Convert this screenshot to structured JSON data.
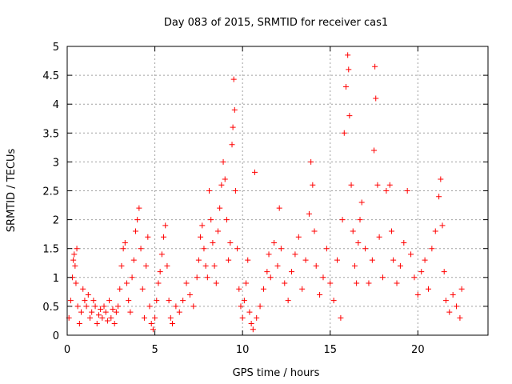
{
  "chart_data": {
    "type": "scatter",
    "title": "Day 083 of 2015, SRMTID for receiver cas1",
    "xlabel": "GPS time / hours",
    "ylabel": "SRMTID / TECUs",
    "xlim": [
      0,
      24
    ],
    "ylim": [
      0,
      5
    ],
    "x_ticks": [
      0,
      5,
      10,
      15,
      20
    ],
    "x_tick_labels": [
      "0",
      "5",
      "10",
      "15",
      "20"
    ],
    "y_ticks": [
      0,
      0.5,
      1,
      1.5,
      2,
      2.5,
      3,
      3.5,
      4,
      4.5,
      5
    ],
    "y_tick_labels": [
      "0",
      "0.5",
      "1",
      "1.5",
      "2",
      "2.5",
      "3",
      "3.5",
      "4",
      "4.5",
      "5"
    ],
    "grid": true,
    "marker": "plus",
    "marker_color": "#ff0000",
    "series": [
      {
        "name": "SRMTID",
        "points": [
          [
            0.1,
            0.3
          ],
          [
            0.2,
            0.6
          ],
          [
            0.3,
            1.0
          ],
          [
            0.35,
            1.3
          ],
          [
            0.4,
            1.4
          ],
          [
            0.45,
            1.2
          ],
          [
            0.5,
            0.9
          ],
          [
            0.55,
            1.5
          ],
          [
            0.6,
            0.5
          ],
          [
            0.7,
            0.2
          ],
          [
            0.8,
            0.4
          ],
          [
            0.9,
            0.8
          ],
          [
            1.0,
            0.6
          ],
          [
            1.1,
            0.5
          ],
          [
            1.2,
            0.7
          ],
          [
            1.3,
            0.3
          ],
          [
            1.4,
            0.4
          ],
          [
            1.5,
            0.6
          ],
          [
            1.6,
            0.5
          ],
          [
            1.7,
            0.2
          ],
          [
            1.8,
            0.35
          ],
          [
            1.9,
            0.45
          ],
          [
            2.0,
            0.3
          ],
          [
            2.1,
            0.5
          ],
          [
            2.2,
            0.4
          ],
          [
            2.3,
            0.25
          ],
          [
            2.4,
            0.6
          ],
          [
            2.5,
            0.3
          ],
          [
            2.6,
            0.45
          ],
          [
            2.7,
            0.2
          ],
          [
            2.8,
            0.4
          ],
          [
            2.9,
            0.5
          ],
          [
            3.0,
            0.8
          ],
          [
            3.1,
            1.2
          ],
          [
            3.2,
            1.5
          ],
          [
            3.3,
            1.6
          ],
          [
            3.4,
            0.9
          ],
          [
            3.5,
            0.6
          ],
          [
            3.6,
            0.4
          ],
          [
            3.7,
            1.0
          ],
          [
            3.8,
            1.3
          ],
          [
            3.9,
            1.8
          ],
          [
            4.0,
            2.0
          ],
          [
            4.1,
            2.2
          ],
          [
            4.2,
            1.5
          ],
          [
            4.3,
            0.8
          ],
          [
            4.4,
            0.3
          ],
          [
            4.5,
            1.2
          ],
          [
            4.6,
            1.7
          ],
          [
            4.7,
            0.5
          ],
          [
            4.8,
            0.2
          ],
          [
            4.9,
            0.1
          ],
          [
            5.0,
            0.3
          ],
          [
            5.1,
            0.6
          ],
          [
            5.2,
            0.9
          ],
          [
            5.3,
            1.1
          ],
          [
            5.4,
            1.4
          ],
          [
            5.5,
            1.7
          ],
          [
            5.6,
            1.9
          ],
          [
            5.7,
            1.2
          ],
          [
            5.8,
            0.6
          ],
          [
            5.9,
            0.3
          ],
          [
            6.0,
            0.2
          ],
          [
            6.2,
            0.5
          ],
          [
            6.4,
            0.4
          ],
          [
            6.6,
            0.6
          ],
          [
            6.8,
            0.9
          ],
          [
            7.0,
            0.7
          ],
          [
            7.2,
            0.5
          ],
          [
            7.4,
            1.0
          ],
          [
            7.5,
            1.3
          ],
          [
            7.6,
            1.7
          ],
          [
            7.7,
            1.9
          ],
          [
            7.8,
            1.5
          ],
          [
            7.9,
            1.2
          ],
          [
            8.0,
            1.0
          ],
          [
            8.1,
            2.5
          ],
          [
            8.2,
            2.0
          ],
          [
            8.3,
            1.6
          ],
          [
            8.4,
            1.2
          ],
          [
            8.5,
            0.9
          ],
          [
            8.6,
            1.8
          ],
          [
            8.7,
            2.2
          ],
          [
            8.8,
            2.6
          ],
          [
            8.9,
            3.0
          ],
          [
            9.0,
            2.7
          ],
          [
            9.1,
            2.0
          ],
          [
            9.2,
            1.3
          ],
          [
            9.3,
            1.6
          ],
          [
            9.4,
            3.3
          ],
          [
            9.45,
            3.6
          ],
          [
            9.5,
            4.43
          ],
          [
            9.55,
            3.9
          ],
          [
            9.6,
            2.5
          ],
          [
            9.7,
            1.5
          ],
          [
            9.8,
            0.8
          ],
          [
            9.9,
            0.5
          ],
          [
            10.0,
            0.3
          ],
          [
            10.1,
            0.6
          ],
          [
            10.2,
            0.9
          ],
          [
            10.3,
            1.3
          ],
          [
            10.4,
            0.4
          ],
          [
            10.5,
            0.2
          ],
          [
            10.6,
            0.1
          ],
          [
            10.7,
            2.82
          ],
          [
            10.8,
            0.3
          ],
          [
            11.0,
            0.5
          ],
          [
            11.2,
            0.8
          ],
          [
            11.4,
            1.1
          ],
          [
            11.5,
            1.4
          ],
          [
            11.6,
            1.0
          ],
          [
            11.8,
            1.6
          ],
          [
            12.0,
            1.2
          ],
          [
            12.1,
            2.2
          ],
          [
            12.2,
            1.5
          ],
          [
            12.4,
            0.9
          ],
          [
            12.6,
            0.6
          ],
          [
            12.8,
            1.1
          ],
          [
            13.0,
            1.4
          ],
          [
            13.2,
            1.7
          ],
          [
            13.4,
            0.8
          ],
          [
            13.6,
            1.3
          ],
          [
            13.8,
            2.1
          ],
          [
            13.9,
            3.0
          ],
          [
            14.0,
            2.6
          ],
          [
            14.1,
            1.8
          ],
          [
            14.2,
            1.2
          ],
          [
            14.4,
            0.7
          ],
          [
            14.6,
            1.0
          ],
          [
            14.8,
            1.5
          ],
          [
            15.0,
            0.9
          ],
          [
            15.2,
            0.6
          ],
          [
            15.4,
            1.3
          ],
          [
            15.6,
            0.3
          ],
          [
            15.7,
            2.0
          ],
          [
            15.8,
            3.5
          ],
          [
            15.9,
            4.3
          ],
          [
            16.0,
            4.85
          ],
          [
            16.05,
            4.6
          ],
          [
            16.1,
            3.8
          ],
          [
            16.2,
            2.6
          ],
          [
            16.3,
            1.8
          ],
          [
            16.4,
            1.2
          ],
          [
            16.5,
            0.9
          ],
          [
            16.6,
            1.6
          ],
          [
            16.7,
            2.0
          ],
          [
            16.8,
            2.3
          ],
          [
            17.0,
            1.5
          ],
          [
            17.2,
            0.9
          ],
          [
            17.4,
            1.3
          ],
          [
            17.5,
            3.2
          ],
          [
            17.55,
            4.65
          ],
          [
            17.6,
            4.1
          ],
          [
            17.7,
            2.6
          ],
          [
            17.8,
            1.7
          ],
          [
            18.0,
            1.0
          ],
          [
            18.2,
            2.5
          ],
          [
            18.4,
            2.6
          ],
          [
            18.5,
            1.8
          ],
          [
            18.6,
            1.3
          ],
          [
            18.8,
            0.9
          ],
          [
            19.0,
            1.2
          ],
          [
            19.2,
            1.6
          ],
          [
            19.4,
            2.5
          ],
          [
            19.6,
            1.4
          ],
          [
            19.8,
            1.0
          ],
          [
            20.0,
            0.7
          ],
          [
            20.2,
            1.1
          ],
          [
            20.4,
            1.3
          ],
          [
            20.6,
            0.8
          ],
          [
            20.8,
            1.5
          ],
          [
            21.0,
            1.8
          ],
          [
            21.2,
            2.4
          ],
          [
            21.3,
            2.7
          ],
          [
            21.4,
            1.9
          ],
          [
            21.5,
            1.1
          ],
          [
            21.6,
            0.6
          ],
          [
            21.8,
            0.4
          ],
          [
            22.0,
            0.7
          ],
          [
            22.2,
            0.5
          ],
          [
            22.4,
            0.3
          ],
          [
            22.5,
            0.8
          ]
        ]
      }
    ]
  }
}
